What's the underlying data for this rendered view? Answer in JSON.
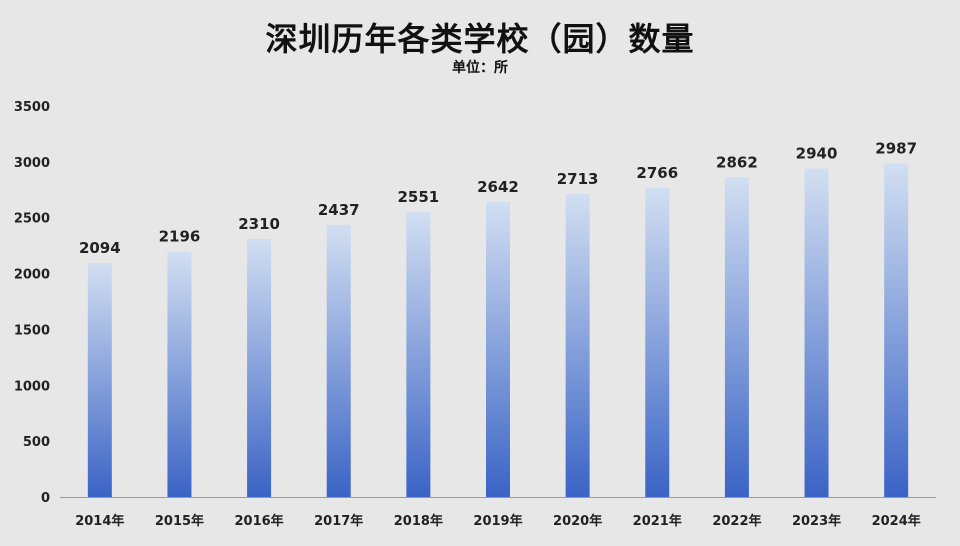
{
  "chart_data": {
    "type": "bar",
    "title": "深圳历年各类学校（园）数量",
    "subtitle": "单位：所",
    "categories": [
      "2014年",
      "2015年",
      "2016年",
      "2017年",
      "2018年",
      "2019年",
      "2020年",
      "2021年",
      "2022年",
      "2023年",
      "2024年"
    ],
    "values": [
      2094,
      2196,
      2310,
      2437,
      2551,
      2642,
      2713,
      2766,
      2862,
      2940,
      2987
    ],
    "ylim": [
      0,
      3500
    ],
    "yticks": [
      0,
      500,
      1000,
      1500,
      2000,
      2500,
      3000,
      3500
    ],
    "grid": false,
    "legend": "none",
    "colors": {
      "background": "#e7e7e7",
      "bar_top": "#d2dff2",
      "bar_bottom": "#3a63c5",
      "axis": "#9a9a9a",
      "text": "#222222"
    }
  }
}
